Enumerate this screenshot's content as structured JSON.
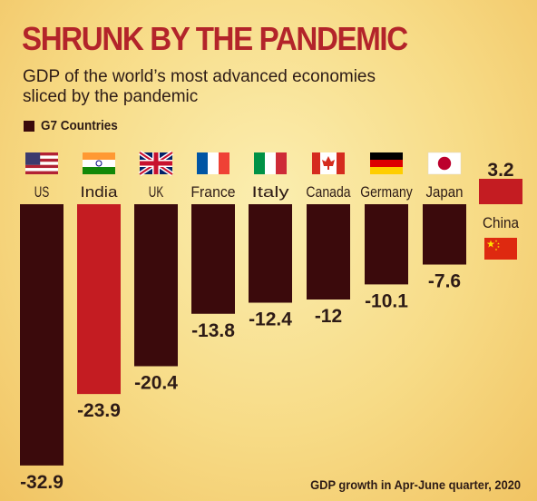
{
  "title": "SHRUNK BY THE PANDEMIC",
  "subtitle_line1": "GDP of the world’s most advanced economies",
  "subtitle_line2": "sliced by the pandemic",
  "legend_label": "G7 Countries",
  "footnote": "GDP growth in Apr-June quarter, 2020",
  "colors": {
    "g7": "#3b0a0c",
    "highlight": "#c41c22",
    "text": "#2d1b16",
    "title": "#b3242a"
  },
  "chart_data": {
    "type": "bar",
    "categories": [
      "US",
      "India",
      "UK",
      "France",
      "Italy",
      "Canada",
      "Germany",
      "Japan",
      "China"
    ],
    "values": [
      -32.9,
      -23.9,
      -20.4,
      -13.8,
      -12.4,
      -12,
      -10.1,
      -7.6,
      3.2
    ],
    "value_labels": [
      "-32.9",
      "-23.9",
      "-20.4",
      "-13.8",
      "-12.4",
      "-12",
      "-10.1",
      "-7.6",
      "3.2"
    ],
    "groups": [
      "G7",
      "highlight",
      "G7",
      "G7",
      "G7",
      "G7",
      "G7",
      "G7",
      "highlight"
    ],
    "flags": [
      "us-flag-icon",
      "india-flag-icon",
      "uk-flag-icon",
      "france-flag-icon",
      "italy-flag-icon",
      "canada-flag-icon",
      "germany-flag-icon",
      "japan-flag-icon",
      "china-flag-icon"
    ],
    "ylim": [
      -32.9,
      3.2
    ],
    "grid": false,
    "legend_position": "top-left"
  }
}
